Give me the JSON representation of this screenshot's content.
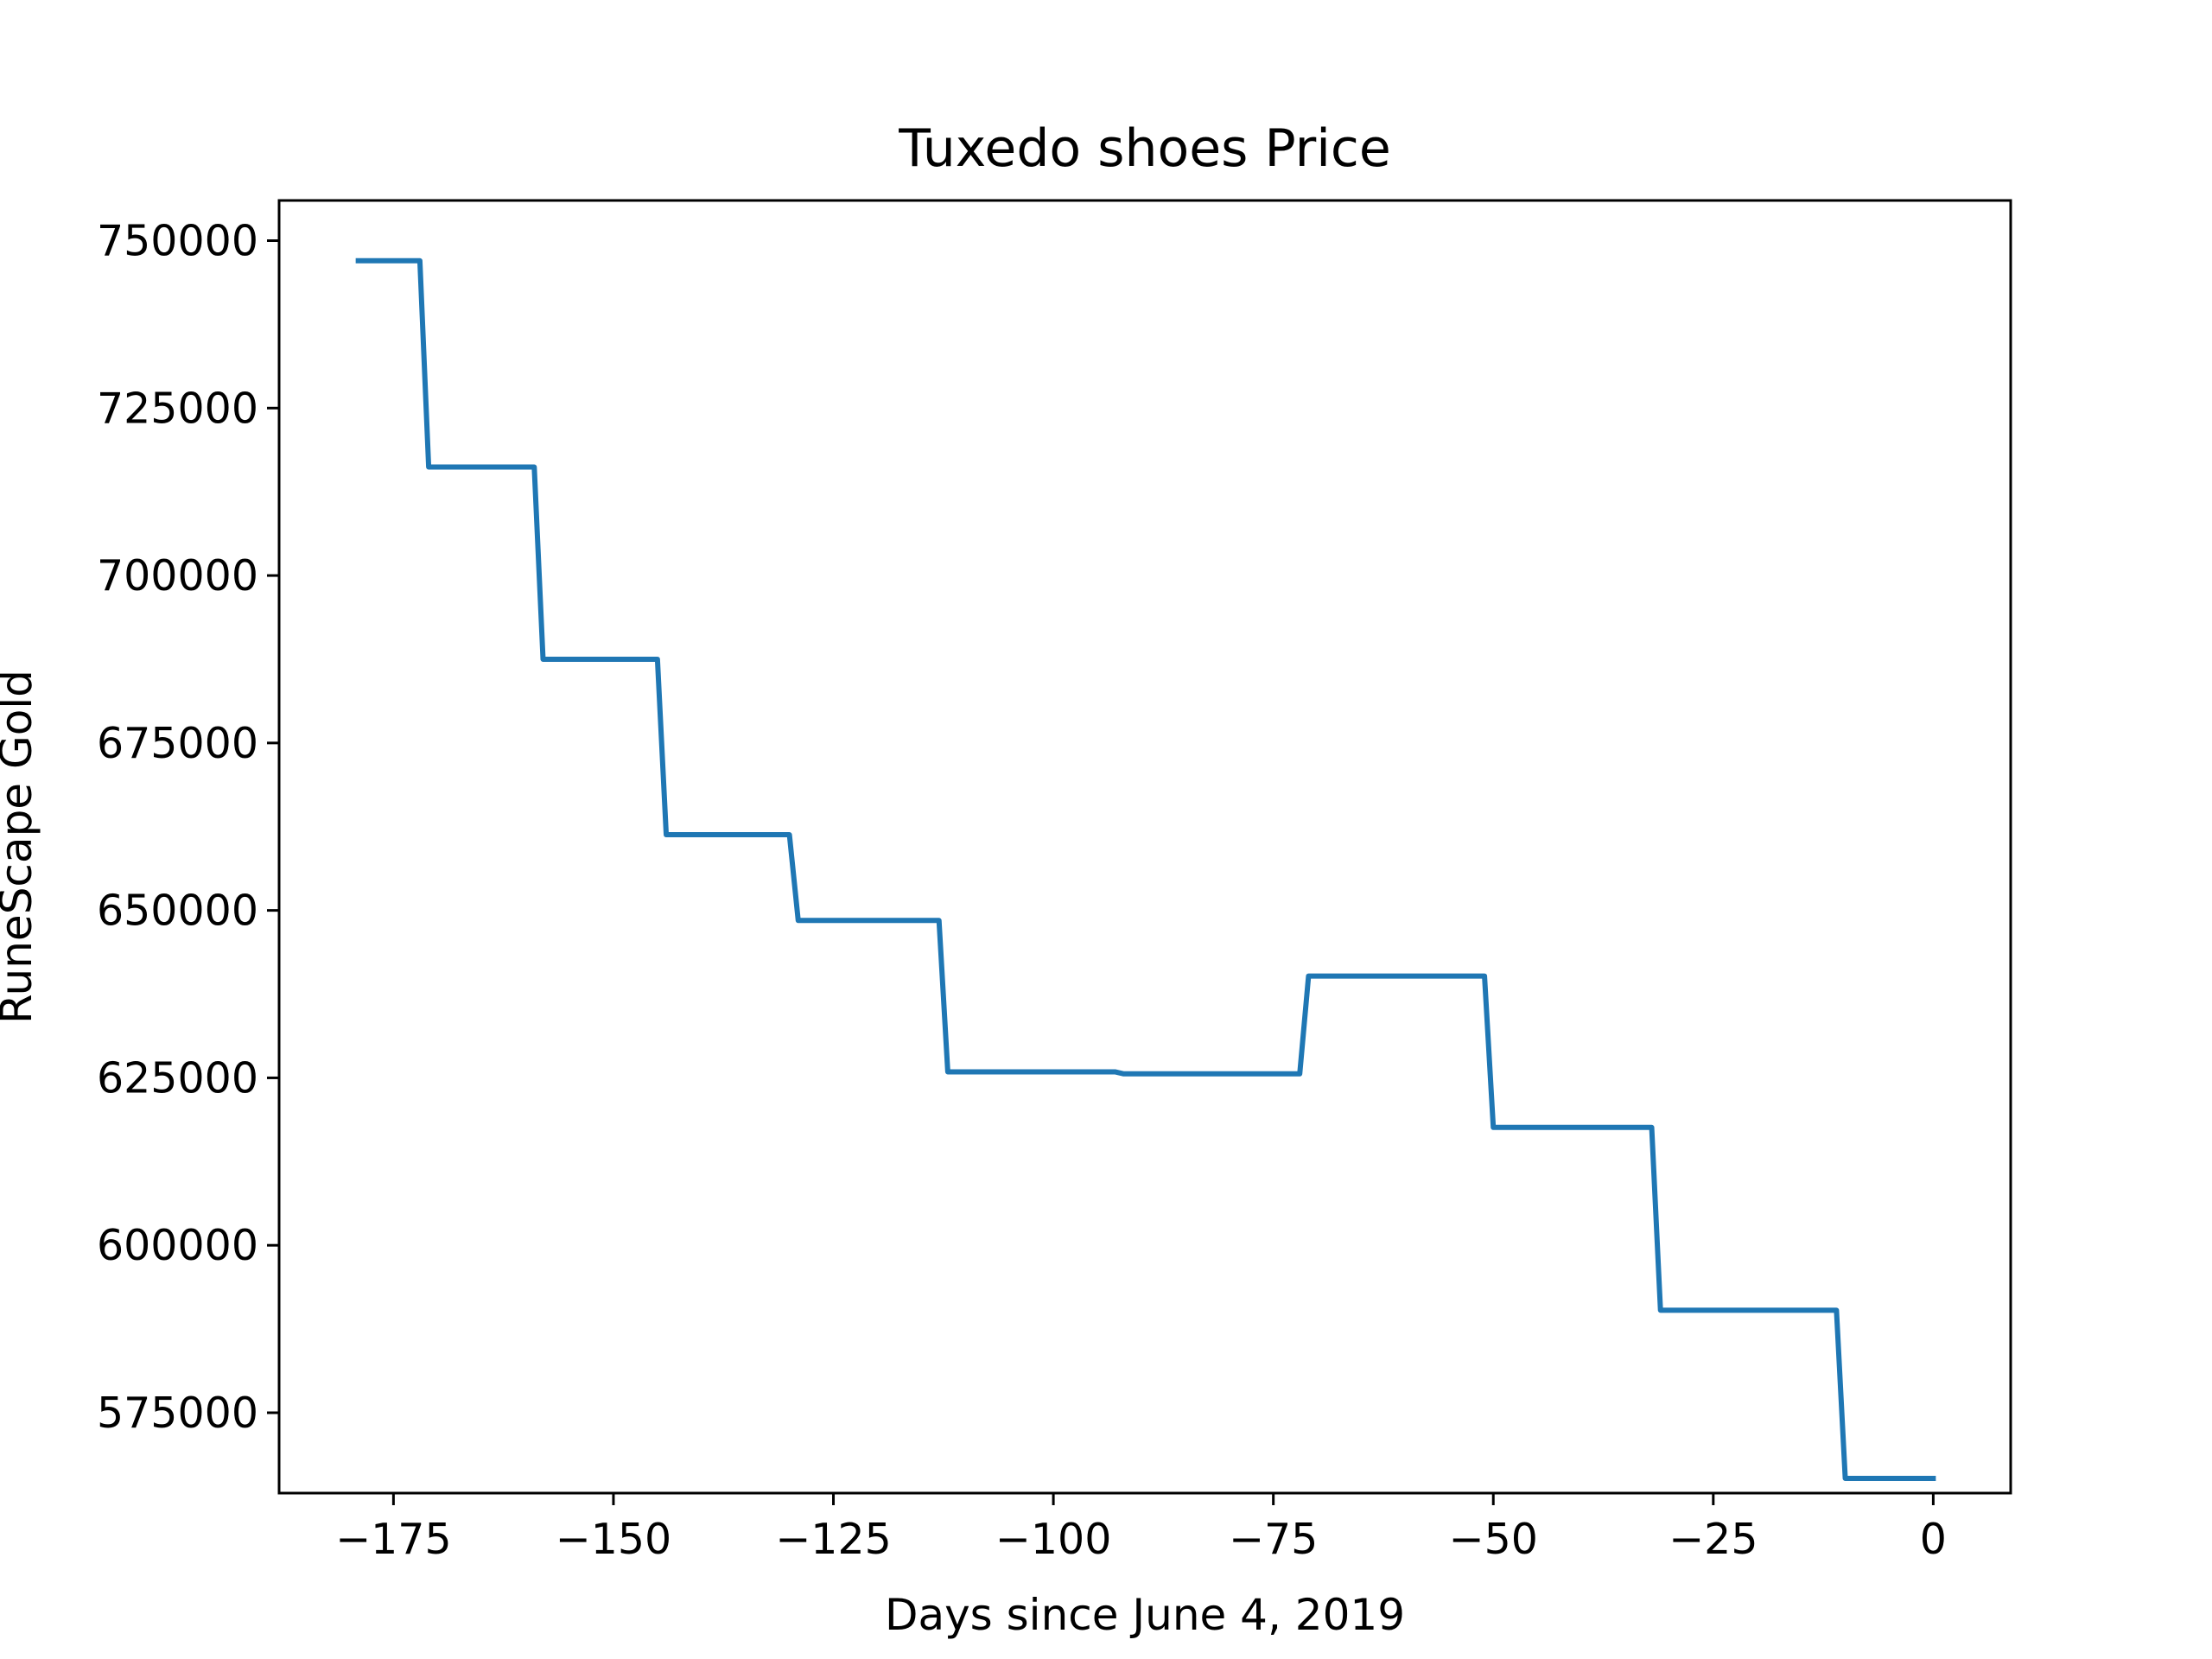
{
  "chart_data": {
    "type": "line",
    "title": "Tuxedo shoes Price",
    "xlabel": "Days since June 4, 2019",
    "ylabel": "RuneScape Gold",
    "xlim": [
      -188,
      8.8
    ],
    "ylim": [
      563000,
      756000
    ],
    "xticks": [
      -175,
      -150,
      -125,
      -100,
      -75,
      -50,
      -25,
      0
    ],
    "xtick_labels": [
      "−175",
      "−150",
      "−125",
      "−100",
      "−75",
      "−50",
      "−25",
      "0"
    ],
    "yticks": [
      575000,
      600000,
      625000,
      650000,
      675000,
      700000,
      725000,
      750000
    ],
    "ytick_labels": [
      "575000",
      "600000",
      "625000",
      "650000",
      "675000",
      "700000",
      "725000",
      "750000"
    ],
    "grid": false,
    "legend": "none",
    "line_color": "#1f77b4",
    "series": [
      {
        "x": [
          -179,
          -172,
          -171,
          -159,
          -158,
          -145,
          -144,
          -130,
          -129,
          -113,
          -112,
          -93,
          -92,
          -72,
          -71,
          -51,
          -50,
          -32,
          -31,
          -11,
          -10,
          0
        ],
        "y": [
          747000,
          747000,
          716200,
          716200,
          687500,
          687500,
          661300,
          661300,
          648500,
          648500,
          625900,
          625900,
          625600,
          625600,
          640200,
          640200,
          617600,
          617600,
          590300,
          590300,
          565200,
          565200
        ]
      }
    ]
  }
}
